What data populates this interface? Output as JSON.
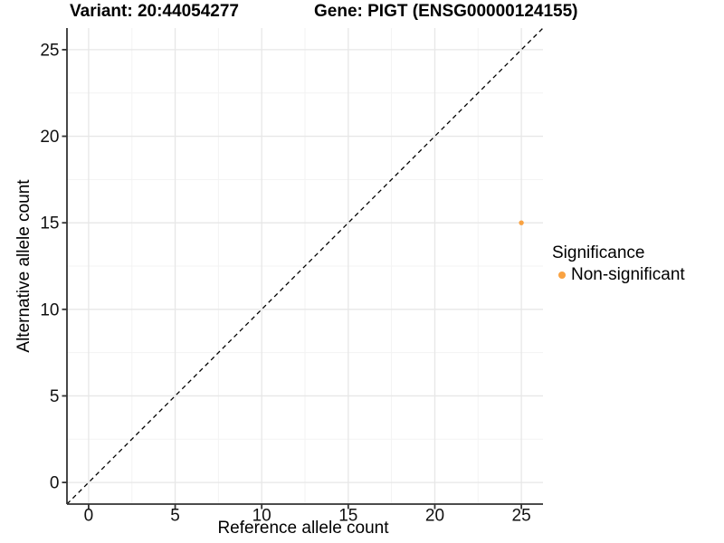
{
  "header": {
    "variant_title": "Variant: 20:44054277",
    "gene_title": "Gene: PIGT (ENSG00000124155)"
  },
  "axes": {
    "x_label": "Reference allele count",
    "y_label": "Alternative allele count"
  },
  "legend": {
    "title": "Significance",
    "position": "right",
    "entries": [
      {
        "label": "Non-significant",
        "color": "#F9A242",
        "marker": "circle"
      }
    ]
  },
  "chart_data": {
    "type": "scatter",
    "title": "Variant: 20:44054277 | Gene: PIGT (ENSG00000124155)",
    "xlabel": "Reference allele count",
    "ylabel": "Alternative allele count",
    "xlim": [
      -1.25,
      26.25
    ],
    "ylim": [
      -1.25,
      26.25
    ],
    "x_ticks": [
      0,
      5,
      10,
      15,
      20,
      25
    ],
    "y_ticks": [
      0,
      5,
      10,
      15,
      20,
      25
    ],
    "x_minor_ticks": [
      2.5,
      7.5,
      12.5,
      17.5,
      22.5
    ],
    "y_minor_ticks": [
      2.5,
      7.5,
      12.5,
      17.5,
      22.5
    ],
    "grid": "major and minor gridlines on white panel",
    "legend_position": "right",
    "reference_line": {
      "type": "identity y=x",
      "style": "dashed",
      "color": "#000000",
      "from": [
        -1.25,
        -1.25
      ],
      "to": [
        26.25,
        26.25
      ]
    },
    "series": [
      {
        "name": "Non-significant",
        "color": "#F9A242",
        "points": [
          {
            "x": 25,
            "y": 15
          }
        ]
      }
    ],
    "style_colors": {
      "grid_major": "#E7E7E7",
      "grid_minor": "#F3F3F3",
      "axis_line": "#333333",
      "tick_text": "#111111"
    }
  }
}
